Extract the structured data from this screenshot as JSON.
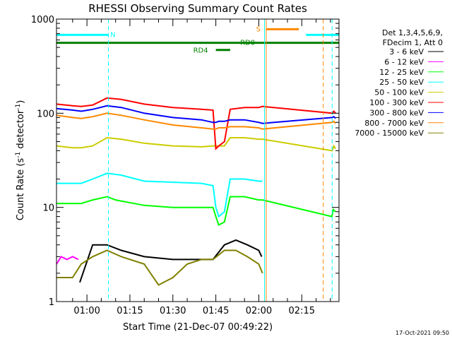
{
  "chart_data": {
    "type": "line",
    "title": "RHESSI Observing Summary Count Rates",
    "xlabel": "Start Time (21-Dec-07 00:49:22)",
    "ylabel_main": "Count Rate (s",
    "ylabel_sup1": "-1",
    "ylabel_mid": " detector",
    "ylabel_sup2": "-1",
    "ylabel_end": ")",
    "y_scale": "log",
    "ylim": [
      1,
      1000
    ],
    "xlim_minutes": [
      49.37,
      148.0
    ],
    "x_tick_labels": [
      "01:00",
      "01:15",
      "01:30",
      "01:45",
      "02:00",
      "02:15"
    ],
    "x_tick_minutes": [
      60,
      75,
      90,
      105,
      120,
      135
    ],
    "y_tick_labels": [
      "1",
      "10",
      "100",
      "1000"
    ],
    "y_tick_values": [
      1,
      10,
      100,
      1000
    ],
    "legend_header": [
      "Det 1,3,4,5,6,9,",
      "FDecim 1, Att 0"
    ],
    "timestamp": "17-Oct-2021 09:50",
    "flags": [
      {
        "label": "N",
        "color": "#00ffff",
        "segments": [
          [
            49.4,
            67.5
          ],
          [
            136.5,
            148.0
          ]
        ],
        "y": 680
      },
      {
        "label": "S",
        "color": "#ff8800",
        "segments": [
          [
            122.5,
            134.0
          ]
        ],
        "y": 780
      },
      {
        "label": "RD0",
        "color": "#008000",
        "segments": [
          [
            49.4,
            148.0
          ]
        ],
        "y": 560
      },
      {
        "label": "RD4",
        "color": "#008000",
        "segments": [
          [
            105.0,
            110.0
          ]
        ],
        "y": 470
      }
    ],
    "vlines": [
      {
        "minute": 67.5,
        "color": "#00ffff",
        "dashed": true
      },
      {
        "minute": 122.0,
        "color": "#00ffff",
        "dashed": false
      },
      {
        "minute": 122.6,
        "color": "#ff8800",
        "dashed": false
      },
      {
        "minute": 142.5,
        "color": "#ff8800",
        "dashed": true
      },
      {
        "minute": 145.6,
        "color": "#00ffff",
        "dashed": true
      }
    ],
    "series": [
      {
        "name": "3 - 6 keV",
        "color": "#000000",
        "x": [
          57.5,
          62,
          67,
          72,
          80,
          90,
          100,
          104,
          108,
          112,
          116,
          120,
          121
        ],
        "y": [
          1.6,
          4.0,
          4.0,
          3.5,
          3.0,
          2.8,
          2.8,
          2.8,
          4.0,
          4.5,
          4.0,
          3.5,
          3.0
        ]
      },
      {
        "name": "6 - 12 keV",
        "color": "#ff00ff",
        "x": [
          49.4,
          51,
          53,
          55,
          57
        ],
        "y": [
          2.5,
          3.0,
          2.8,
          3.0,
          2.8
        ]
      },
      {
        "name": "12 - 25 keV",
        "color": "#00ff00",
        "x": [
          49.4,
          55,
          58,
          62,
          67,
          70,
          80,
          90,
          100,
          104,
          105,
          106,
          108,
          110,
          115,
          120,
          121.3,
          145.5,
          146.0,
          146.8
        ],
        "y": [
          11,
          11,
          11,
          12,
          13,
          12,
          10.5,
          10,
          10,
          10,
          8,
          6.5,
          7,
          13,
          13,
          12,
          12,
          8,
          9.5,
          9
        ]
      },
      {
        "name": "25 - 50 keV",
        "color": "#00ffff",
        "x": [
          49.4,
          55,
          58,
          62,
          67,
          72,
          80,
          90,
          100,
          104,
          105,
          106,
          108,
          110,
          115,
          120,
          121.3
        ],
        "y": [
          18,
          18,
          18,
          20,
          23,
          22,
          19,
          18.5,
          18,
          17,
          10,
          8,
          9,
          20,
          20,
          19,
          19
        ]
      },
      {
        "name": "50 - 100 keV",
        "color": "#cccc00",
        "x": [
          49.4,
          55,
          58,
          62,
          67,
          72,
          80,
          90,
          100,
          104,
          105,
          106,
          108,
          110,
          115,
          120,
          121.3,
          145.6,
          146.2,
          146.8
        ],
        "y": [
          45,
          43,
          43,
          45,
          55,
          53,
          48,
          45,
          44,
          45,
          45,
          45,
          45,
          55,
          55,
          53,
          53,
          40,
          45,
          42
        ]
      },
      {
        "name": "100 - 300 keV",
        "color": "#ff0000",
        "x": [
          49.4,
          55,
          58,
          62,
          67,
          72,
          80,
          90,
          100,
          104,
          105,
          106,
          108,
          110,
          115,
          120,
          121.3,
          145.6,
          146.2,
          146.8
        ],
        "y": [
          125,
          120,
          118,
          122,
          145,
          140,
          125,
          115,
          110,
          108,
          42,
          45,
          50,
          110,
          115,
          115,
          118,
          100,
          105,
          100
        ]
      },
      {
        "name": "300 - 800 keV",
        "color": "#0000ff",
        "x": [
          49.4,
          55,
          58,
          62,
          67,
          72,
          80,
          90,
          100,
          104,
          105,
          106,
          108,
          110,
          115,
          120,
          121.3,
          145.6,
          146.2,
          146.8
        ],
        "y": [
          112,
          108,
          105,
          110,
          120,
          115,
          100,
          90,
          85,
          80,
          80,
          82,
          82,
          85,
          85,
          80,
          78,
          90,
          92,
          88
        ]
      },
      {
        "name": "800 - 7000 keV",
        "color": "#ff8800",
        "x": [
          49.4,
          55,
          58,
          62,
          67,
          72,
          80,
          90,
          100,
          104,
          105,
          106,
          108,
          110,
          115,
          120,
          121.3,
          145.6,
          146.2,
          146.8
        ],
        "y": [
          95,
          90,
          88,
          92,
          100,
          95,
          85,
          75,
          70,
          68,
          68,
          70,
          70,
          72,
          72,
          70,
          68,
          80,
          82,
          78
        ]
      },
      {
        "name": "7000 - 15000 keV",
        "color": "#808000",
        "x": [
          49.4,
          55,
          58,
          62,
          67,
          72,
          80,
          85,
          90,
          95,
          100,
          104,
          108,
          112,
          116,
          120,
          121.3
        ],
        "y": [
          1.8,
          1.8,
          2.5,
          3.0,
          3.5,
          3.0,
          2.5,
          1.5,
          1.8,
          2.5,
          2.8,
          2.8,
          3.5,
          3.5,
          3.0,
          2.5,
          2.0
        ]
      }
    ]
  }
}
